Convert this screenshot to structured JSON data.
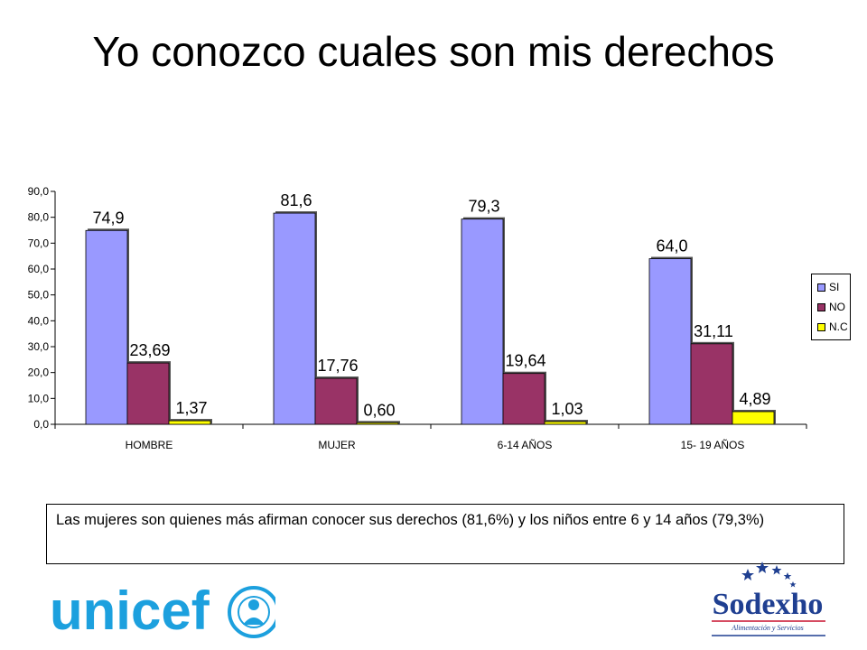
{
  "slide": {
    "title": "Yo conozco cuales son mis derechos",
    "note": "Las mujeres son quienes más afirman conocer sus derechos (81,6%) y los niños entre 6 y 14 años (79,3%)"
  },
  "logos": {
    "unicef": "unicef",
    "sodexho_name": "Sodexho",
    "sodexho_tagline": "Alimentación y Servicios"
  },
  "chart_data": {
    "type": "bar",
    "title": "",
    "xlabel": "",
    "ylabel": "",
    "categories": [
      "HOMBRE",
      "MUJER",
      "6-14 AÑOS",
      "15- 19 AÑOS"
    ],
    "series": [
      {
        "name": "SI",
        "color": "#9999ff",
        "values": [
          74.9,
          81.6,
          79.3,
          64.0
        ],
        "labels": [
          "74,9",
          "81,6",
          "79,3",
          "64,0"
        ]
      },
      {
        "name": "NO",
        "color": "#993366",
        "values": [
          23.69,
          17.76,
          19.64,
          31.11
        ],
        "labels": [
          "23,69",
          "17,76",
          "19,64",
          "31,11"
        ]
      },
      {
        "name": "N.C",
        "color": "#ffff00",
        "values": [
          1.37,
          0.6,
          1.03,
          4.89
        ],
        "labels": [
          "1,37",
          "0,60",
          "1,03",
          "4,89"
        ]
      }
    ],
    "ylim": [
      0,
      90
    ],
    "yticks": [
      "0,0",
      "10,0",
      "20,0",
      "30,0",
      "40,0",
      "50,0",
      "60,0",
      "70,0",
      "80,0",
      "90,0"
    ],
    "grid": false,
    "legend_position": "right"
  }
}
